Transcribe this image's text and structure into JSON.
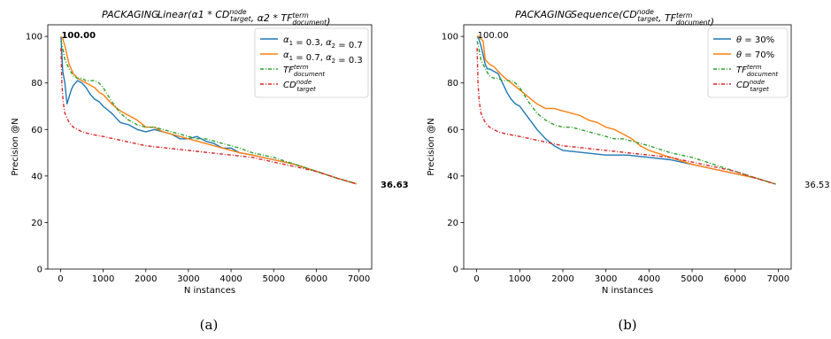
{
  "chart_data": [
    {
      "type": "line",
      "panel": "(a)",
      "title": "PACKAGING",
      "subtitle": "Linear(α1 * CD_target^node, α2 * TF_document^term)",
      "xlabel": "N instances",
      "ylabel": "Precision @N",
      "xlim": [
        -300,
        7300
      ],
      "ylim": [
        0,
        105
      ],
      "xticks": [
        "0",
        "1000",
        "2000",
        "3000",
        "4000",
        "5000",
        "6000",
        "7000"
      ],
      "yticks": [
        "0",
        "20",
        "40",
        "60",
        "80",
        "100"
      ],
      "start_label": "100.00",
      "end_label": "36.63",
      "legend_position": "top-right",
      "series": [
        {
          "name": "α1 = 0.3, α2 = 0.7",
          "color": "#1f77b4",
          "style": "solid",
          "x": [
            10,
            50,
            100,
            150,
            200,
            250,
            300,
            400,
            500,
            600,
            700,
            800,
            900,
            1000,
            1200,
            1400,
            1600,
            1800,
            2000,
            2200,
            2400,
            2600,
            2800,
            3000,
            3200,
            3400,
            3600,
            3800,
            4000,
            4200,
            4500,
            5000,
            5500,
            6000,
            6500,
            6940
          ],
          "y": [
            100,
            85,
            80,
            71,
            74,
            77,
            79,
            81,
            80,
            78,
            75,
            73,
            72,
            70,
            67,
            63,
            62,
            60,
            59,
            60,
            59,
            58,
            56,
            56,
            57,
            55,
            54,
            52,
            52,
            50,
            49,
            47,
            45,
            42,
            39,
            36.63
          ]
        },
        {
          "name": "α1 = 0.7, α2 = 0.3",
          "color": "#ff7f0e",
          "style": "solid",
          "x": [
            10,
            50,
            100,
            150,
            200,
            250,
            300,
            400,
            500,
            600,
            700,
            800,
            900,
            1000,
            1200,
            1400,
            1600,
            1800,
            2000,
            2200,
            2400,
            2600,
            2800,
            3000,
            3200,
            3400,
            3600,
            3800,
            4000,
            4200,
            4500,
            5000,
            5500,
            6000,
            6500,
            6940
          ],
          "y": [
            100,
            99,
            96,
            92,
            88,
            86,
            84,
            82,
            81,
            80,
            79,
            78,
            76,
            75,
            71,
            68,
            66,
            64,
            61,
            61,
            59,
            58,
            57,
            56,
            55,
            54,
            53,
            52,
            51,
            50,
            49,
            47,
            45,
            42,
            39,
            36.63
          ]
        },
        {
          "name": "TF_document^term",
          "color": "#2ca02c",
          "style": "dashdot",
          "x": [
            10,
            50,
            100,
            200,
            300,
            400,
            500,
            600,
            700,
            800,
            900,
            1000,
            1200,
            1400,
            1600,
            1800,
            2000,
            2200,
            2400,
            2600,
            2800,
            3000,
            3200,
            3400,
            3600,
            3800,
            4000,
            4200,
            4500,
            5000,
            5500,
            6000,
            6500,
            6940
          ],
          "y": [
            98,
            95,
            90,
            86,
            83,
            82,
            82,
            81,
            81,
            81,
            80,
            78,
            72,
            67,
            64,
            62,
            61,
            61,
            60,
            59,
            58,
            57,
            56,
            56,
            55,
            54,
            53,
            52,
            50,
            48,
            45,
            42,
            39,
            36.63
          ]
        },
        {
          "name": "CD_target^node",
          "color": "#d62728",
          "style": "dashdot",
          "x": [
            10,
            30,
            60,
            100,
            150,
            200,
            300,
            400,
            500,
            700,
            1000,
            1500,
            2000,
            2500,
            3000,
            3500,
            4000,
            4500,
            5000,
            5500,
            6000,
            6500,
            6940
          ],
          "y": [
            95,
            80,
            72,
            67,
            65,
            63,
            61,
            60,
            59,
            58,
            57,
            55,
            53,
            52,
            51,
            50,
            49,
            48,
            46,
            44,
            42,
            39,
            36.63
          ]
        }
      ]
    },
    {
      "type": "line",
      "panel": "(b)",
      "title": "PACKAGING",
      "subtitle": "Sequence(CD_target^node, TF_document^term)",
      "xlabel": "N instances",
      "ylabel": "Precision @N",
      "xlim": [
        -300,
        7300
      ],
      "ylim": [
        0,
        105
      ],
      "xticks": [
        "0",
        "1000",
        "2000",
        "3000",
        "4000",
        "5000",
        "6000",
        "7000"
      ],
      "yticks": [
        "0",
        "20",
        "40",
        "60",
        "80",
        "100"
      ],
      "start_label": "100.00",
      "end_label": "36.53",
      "legend_position": "top-right",
      "series": [
        {
          "name": "θ = 30%",
          "color": "#1f77b4",
          "style": "solid",
          "x": [
            10,
            50,
            100,
            150,
            200,
            250,
            300,
            400,
            500,
            600,
            700,
            800,
            900,
            1000,
            1200,
            1400,
            1600,
            1800,
            2000,
            2500,
            3000,
            3500,
            4000,
            4500,
            5000,
            5500,
            6000,
            6500,
            6940
          ],
          "y": [
            100,
            99,
            96,
            92,
            88,
            86,
            86,
            85,
            84,
            80,
            76,
            73,
            71,
            70,
            65,
            60,
            56,
            53,
            51,
            50,
            49,
            49,
            48,
            47,
            45,
            43,
            41,
            39,
            36.53
          ]
        },
        {
          "name": "θ = 70%",
          "color": "#ff7f0e",
          "style": "solid",
          "x": [
            10,
            50,
            100,
            150,
            200,
            300,
            400,
            500,
            600,
            800,
            1000,
            1200,
            1400,
            1600,
            1800,
            2000,
            2200,
            2400,
            2600,
            2800,
            3000,
            3200,
            3400,
            3600,
            3800,
            4000,
            4500,
            5000,
            5500,
            6000,
            6500,
            6940
          ],
          "y": [
            100,
            100,
            99,
            98,
            90,
            88,
            87,
            85,
            83,
            80,
            77,
            74,
            71,
            69,
            69,
            68,
            67,
            66,
            64,
            63,
            61,
            60,
            58,
            56,
            53,
            51,
            48,
            45,
            43,
            41,
            39,
            36.53
          ]
        },
        {
          "name": "TF_document^term",
          "color": "#2ca02c",
          "style": "dashdot",
          "x": [
            10,
            50,
            100,
            200,
            300,
            400,
            500,
            600,
            700,
            800,
            900,
            1000,
            1200,
            1400,
            1600,
            1800,
            2000,
            2200,
            2400,
            2600,
            2800,
            3000,
            3200,
            3400,
            3600,
            3800,
            4000,
            4500,
            5000,
            5500,
            6000,
            6500,
            6940
          ],
          "y": [
            98,
            95,
            90,
            86,
            83,
            82,
            82,
            81,
            81,
            81,
            80,
            78,
            72,
            67,
            64,
            62,
            61,
            61,
            60,
            59,
            58,
            57,
            56,
            56,
            55,
            54,
            53,
            50,
            48,
            45,
            42,
            39,
            36.53
          ]
        },
        {
          "name": "CD_target^node",
          "color": "#d62728",
          "style": "dashdot",
          "x": [
            10,
            30,
            60,
            100,
            150,
            200,
            300,
            400,
            500,
            700,
            1000,
            1500,
            2000,
            2500,
            3000,
            3500,
            4000,
            4500,
            5000,
            5500,
            6000,
            6500,
            6940
          ],
          "y": [
            95,
            80,
            72,
            67,
            65,
            63,
            61,
            60,
            59,
            58,
            57,
            55,
            53,
            52,
            51,
            50,
            49,
            48,
            46,
            44,
            42,
            39,
            36.53
          ]
        }
      ]
    }
  ]
}
